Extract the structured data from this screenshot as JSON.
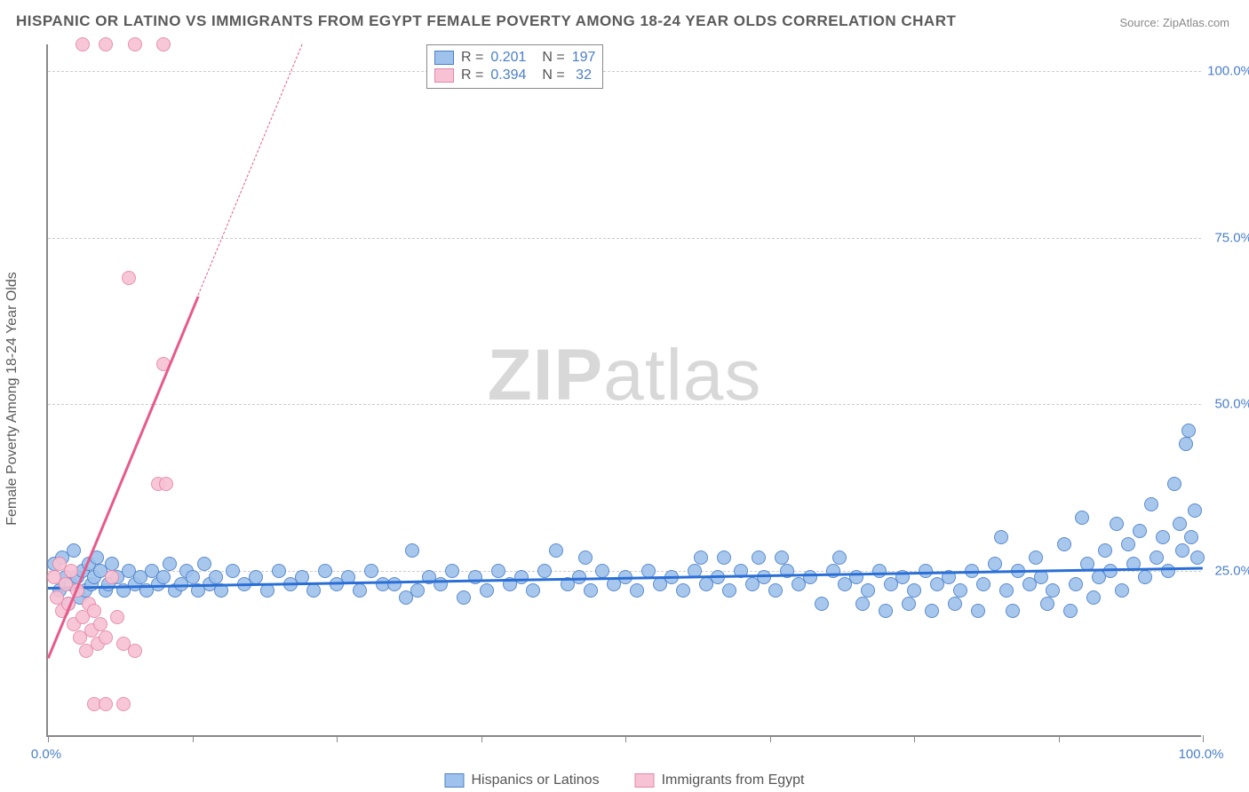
{
  "title": "HISPANIC OR LATINO VS IMMIGRANTS FROM EGYPT FEMALE POVERTY AMONG 18-24 YEAR OLDS CORRELATION CHART",
  "source": "Source: ZipAtlas.com",
  "watermark_bold": "ZIP",
  "watermark_rest": "atlas",
  "y_axis_title": "Female Poverty Among 18-24 Year Olds",
  "chart": {
    "type": "scatter",
    "background_color": "#ffffff",
    "grid_color": "#cccccc",
    "axis_color": "#888888",
    "xlim": [
      0,
      100
    ],
    "ylim": [
      0,
      104
    ],
    "x_ticks": [
      0,
      12.5,
      25,
      37.5,
      50,
      62.5,
      75,
      87.5,
      100
    ],
    "x_labels": {
      "0": "0.0%",
      "100": "100.0%"
    },
    "y_gridlines": [
      25,
      50,
      75,
      100
    ],
    "y_labels": {
      "25": "25.0%",
      "50": "50.0%",
      "75": "75.0%",
      "100": "100.0%"
    },
    "marker_radius": 8,
    "marker_stroke_width": 1.5,
    "marker_fill_opacity": 0.35,
    "series": [
      {
        "name": "Hispanics or Latinos",
        "label": "Hispanics or Latinos",
        "color_stroke": "#4a7fc8",
        "color_fill": "#9fc2ec",
        "R": "0.201",
        "N": "197",
        "trend": {
          "x1": 0,
          "y1": 22.5,
          "x2": 100,
          "y2": 25.5,
          "color": "#2a6fd6",
          "width": 2.5,
          "solid_to_x": 100
        },
        "points": [
          [
            0.5,
            26
          ],
          [
            1,
            22
          ],
          [
            1.2,
            27
          ],
          [
            1.5,
            24
          ],
          [
            1.8,
            20
          ],
          [
            2,
            23
          ],
          [
            2.2,
            28
          ],
          [
            2.5,
            24
          ],
          [
            2.8,
            21
          ],
          [
            3,
            25
          ],
          [
            3.2,
            22
          ],
          [
            3.5,
            26
          ],
          [
            3.8,
            23
          ],
          [
            4,
            24
          ],
          [
            4.2,
            27
          ],
          [
            4.5,
            25
          ],
          [
            5,
            22
          ],
          [
            5.2,
            23
          ],
          [
            5.5,
            26
          ],
          [
            6,
            24
          ],
          [
            6.5,
            22
          ],
          [
            7,
            25
          ],
          [
            7.5,
            23
          ],
          [
            8,
            24
          ],
          [
            8.5,
            22
          ],
          [
            9,
            25
          ],
          [
            9.5,
            23
          ],
          [
            10,
            24
          ],
          [
            10.5,
            26
          ],
          [
            11,
            22
          ],
          [
            11.5,
            23
          ],
          [
            12,
            25
          ],
          [
            12.5,
            24
          ],
          [
            13,
            22
          ],
          [
            13.5,
            26
          ],
          [
            14,
            23
          ],
          [
            14.5,
            24
          ],
          [
            15,
            22
          ],
          [
            16,
            25
          ],
          [
            17,
            23
          ],
          [
            18,
            24
          ],
          [
            19,
            22
          ],
          [
            20,
            25
          ],
          [
            21,
            23
          ],
          [
            22,
            24
          ],
          [
            23,
            22
          ],
          [
            24,
            25
          ],
          [
            25,
            23
          ],
          [
            26,
            24
          ],
          [
            27,
            22
          ],
          [
            28,
            25
          ],
          [
            29,
            23
          ],
          [
            30,
            23
          ],
          [
            31,
            21
          ],
          [
            31.5,
            28
          ],
          [
            32,
            22
          ],
          [
            33,
            24
          ],
          [
            34,
            23
          ],
          [
            35,
            25
          ],
          [
            36,
            21
          ],
          [
            37,
            24
          ],
          [
            38,
            22
          ],
          [
            39,
            25
          ],
          [
            40,
            23
          ],
          [
            41,
            24
          ],
          [
            42,
            22
          ],
          [
            43,
            25
          ],
          [
            44,
            28
          ],
          [
            45,
            23
          ],
          [
            46,
            24
          ],
          [
            46.5,
            27
          ],
          [
            47,
            22
          ],
          [
            48,
            25
          ],
          [
            49,
            23
          ],
          [
            50,
            24
          ],
          [
            51,
            22
          ],
          [
            52,
            25
          ],
          [
            53,
            23
          ],
          [
            54,
            24
          ],
          [
            55,
            22
          ],
          [
            56,
            25
          ],
          [
            56.5,
            27
          ],
          [
            57,
            23
          ],
          [
            58,
            24
          ],
          [
            58.5,
            27
          ],
          [
            59,
            22
          ],
          [
            60,
            25
          ],
          [
            61,
            23
          ],
          [
            61.5,
            27
          ],
          [
            62,
            24
          ],
          [
            63,
            22
          ],
          [
            63.5,
            27
          ],
          [
            64,
            25
          ],
          [
            65,
            23
          ],
          [
            66,
            24
          ],
          [
            67,
            20
          ],
          [
            68,
            25
          ],
          [
            68.5,
            27
          ],
          [
            69,
            23
          ],
          [
            70,
            24
          ],
          [
            70.5,
            20
          ],
          [
            71,
            22
          ],
          [
            72,
            25
          ],
          [
            72.5,
            19
          ],
          [
            73,
            23
          ],
          [
            74,
            24
          ],
          [
            74.5,
            20
          ],
          [
            75,
            22
          ],
          [
            76,
            25
          ],
          [
            76.5,
            19
          ],
          [
            77,
            23
          ],
          [
            78,
            24
          ],
          [
            78.5,
            20
          ],
          [
            79,
            22
          ],
          [
            80,
            25
          ],
          [
            80.5,
            19
          ],
          [
            81,
            23
          ],
          [
            82,
            26
          ],
          [
            82.5,
            30
          ],
          [
            83,
            22
          ],
          [
            83.5,
            19
          ],
          [
            84,
            25
          ],
          [
            85,
            23
          ],
          [
            85.5,
            27
          ],
          [
            86,
            24
          ],
          [
            86.5,
            20
          ],
          [
            87,
            22
          ],
          [
            88,
            29
          ],
          [
            88.5,
            19
          ],
          [
            89,
            23
          ],
          [
            89.5,
            33
          ],
          [
            90,
            26
          ],
          [
            90.5,
            21
          ],
          [
            91,
            24
          ],
          [
            91.5,
            28
          ],
          [
            92,
            25
          ],
          [
            92.5,
            32
          ],
          [
            93,
            22
          ],
          [
            93.5,
            29
          ],
          [
            94,
            26
          ],
          [
            94.5,
            31
          ],
          [
            95,
            24
          ],
          [
            95.5,
            35
          ],
          [
            96,
            27
          ],
          [
            96.5,
            30
          ],
          [
            97,
            25
          ],
          [
            97.5,
            38
          ],
          [
            98,
            32
          ],
          [
            98.2,
            28
          ],
          [
            98.5,
            44
          ],
          [
            98.8,
            46
          ],
          [
            99,
            30
          ],
          [
            99.3,
            34
          ],
          [
            99.5,
            27
          ]
        ]
      },
      {
        "name": "Immigrants from Egypt",
        "label": "Immigrants from Egypt",
        "color_stroke": "#e786a8",
        "color_fill": "#f7c2d3",
        "R": "0.394",
        "N": "32",
        "trend": {
          "x1": 0,
          "y1": 12,
          "x2": 22,
          "y2": 104,
          "color": "#e75a8a",
          "width": 2.5,
          "solid_to_x": 13
        },
        "points": [
          [
            0.5,
            24
          ],
          [
            0.8,
            21
          ],
          [
            1,
            26
          ],
          [
            1.2,
            19
          ],
          [
            1.5,
            23
          ],
          [
            1.8,
            20
          ],
          [
            2,
            25
          ],
          [
            2.2,
            17
          ],
          [
            2.5,
            22
          ],
          [
            2.8,
            15
          ],
          [
            3,
            18
          ],
          [
            3.3,
            13
          ],
          [
            3.5,
            20
          ],
          [
            3.8,
            16
          ],
          [
            4,
            19
          ],
          [
            4.3,
            14
          ],
          [
            4.5,
            17
          ],
          [
            5,
            15
          ],
          [
            5.5,
            24
          ],
          [
            6,
            18
          ],
          [
            6.5,
            14
          ],
          [
            7.5,
            13
          ],
          [
            4,
            5
          ],
          [
            5,
            5
          ],
          [
            6.5,
            5
          ],
          [
            3,
            104
          ],
          [
            5,
            104
          ],
          [
            7.5,
            104
          ],
          [
            10,
            104
          ],
          [
            7,
            69
          ],
          [
            9.5,
            38
          ],
          [
            10.2,
            38
          ],
          [
            10,
            56
          ]
        ]
      }
    ]
  },
  "stats_legend": {
    "r_label": "R =",
    "n_label": "N ="
  }
}
